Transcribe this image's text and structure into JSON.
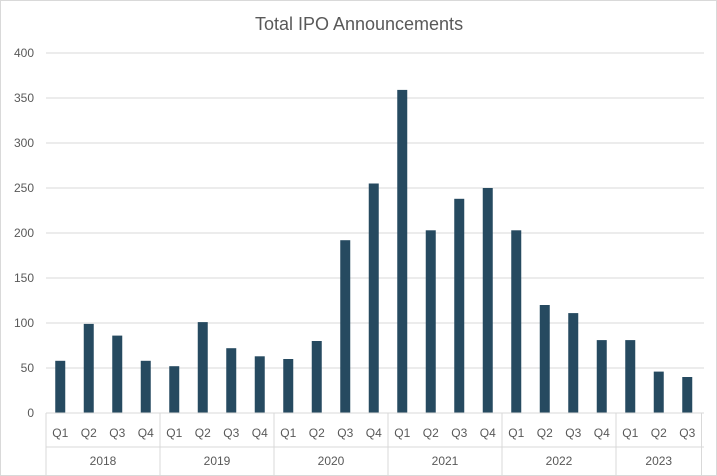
{
  "chart_data": {
    "type": "bar",
    "title": "Total IPO Announcements",
    "xlabel": "",
    "ylabel": "",
    "ylim": [
      0,
      400
    ],
    "yticks": [
      "0",
      "50",
      "100",
      "150",
      "200",
      "250",
      "300",
      "350",
      "400"
    ],
    "grid": true,
    "legend": "none",
    "bar_color": "#264a60",
    "groups": [
      {
        "year": "2018",
        "quarters": [
          "Q1",
          "Q2",
          "Q3",
          "Q4"
        ],
        "values": [
          58,
          99,
          86,
          58
        ]
      },
      {
        "year": "2019",
        "quarters": [
          "Q1",
          "Q2",
          "Q3",
          "Q4"
        ],
        "values": [
          52,
          101,
          72,
          63
        ]
      },
      {
        "year": "2020",
        "quarters": [
          "Q1",
          "Q2",
          "Q3",
          "Q4"
        ],
        "values": [
          60,
          80,
          192,
          255
        ]
      },
      {
        "year": "2021",
        "quarters": [
          "Q1",
          "Q2",
          "Q3",
          "Q4"
        ],
        "values": [
          359,
          203,
          238,
          250
        ]
      },
      {
        "year": "2022",
        "quarters": [
          "Q1",
          "Q2",
          "Q3",
          "Q4"
        ],
        "values": [
          203,
          120,
          111,
          81
        ]
      },
      {
        "year": "2023",
        "quarters": [
          "Q1",
          "Q2",
          "Q3"
        ],
        "values": [
          81,
          46,
          40
        ]
      }
    ]
  }
}
